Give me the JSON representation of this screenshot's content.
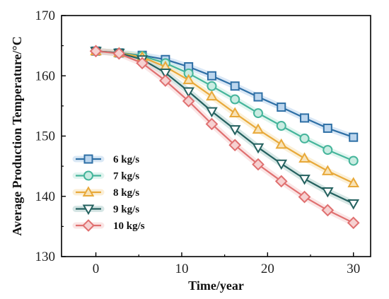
{
  "chart_data": {
    "type": "line",
    "xlabel": "Time/year",
    "ylabel": "Average Production Temperature/°C",
    "xlim": [
      -4,
      32
    ],
    "ylim": [
      130,
      170
    ],
    "xticks": [
      0,
      10,
      20,
      30
    ],
    "yticks": [
      130,
      140,
      150,
      160,
      170
    ],
    "grid": false,
    "legend_position": "lower-left",
    "x": [
      0,
      2.7,
      5.4,
      8.1,
      10.8,
      13.5,
      16.2,
      18.9,
      21.6,
      24.3,
      27.0,
      30.0
    ],
    "series": [
      {
        "name": "6 kg/s",
        "marker": "square",
        "color": "#2e6fa5",
        "fill": "#bcd6ee",
        "values": [
          164.1,
          163.8,
          163.4,
          162.7,
          161.5,
          160.0,
          158.3,
          156.5,
          154.8,
          153.0,
          151.3,
          149.8
        ]
      },
      {
        "name": "7 kg/s",
        "marker": "circle",
        "color": "#45b59b",
        "fill": "#c9ece2",
        "values": [
          164.1,
          163.8,
          163.3,
          162.1,
          160.4,
          158.3,
          156.1,
          153.8,
          151.7,
          149.6,
          147.7,
          145.9
        ]
      },
      {
        "name": "8 kg/s",
        "marker": "triangle-up",
        "color": "#e8a93a",
        "fill": "#f8e3b8",
        "values": [
          164.1,
          163.8,
          163.1,
          161.5,
          159.3,
          156.6,
          153.8,
          151.1,
          148.6,
          146.3,
          144.2,
          142.2
        ]
      },
      {
        "name": "9 kg/s",
        "marker": "triangle-down",
        "color": "#24615f",
        "fill": "#ffffff",
        "values": [
          164.1,
          163.8,
          162.7,
          160.5,
          157.4,
          154.1,
          151.1,
          148.1,
          145.4,
          142.9,
          140.8,
          138.8
        ]
      },
      {
        "name": "10 kg/s",
        "marker": "diamond",
        "color": "#e07070",
        "fill": "#f6d1d1",
        "values": [
          164.1,
          163.7,
          162.1,
          159.2,
          155.8,
          152.0,
          148.5,
          145.3,
          142.5,
          139.9,
          137.7,
          135.6
        ]
      }
    ]
  }
}
